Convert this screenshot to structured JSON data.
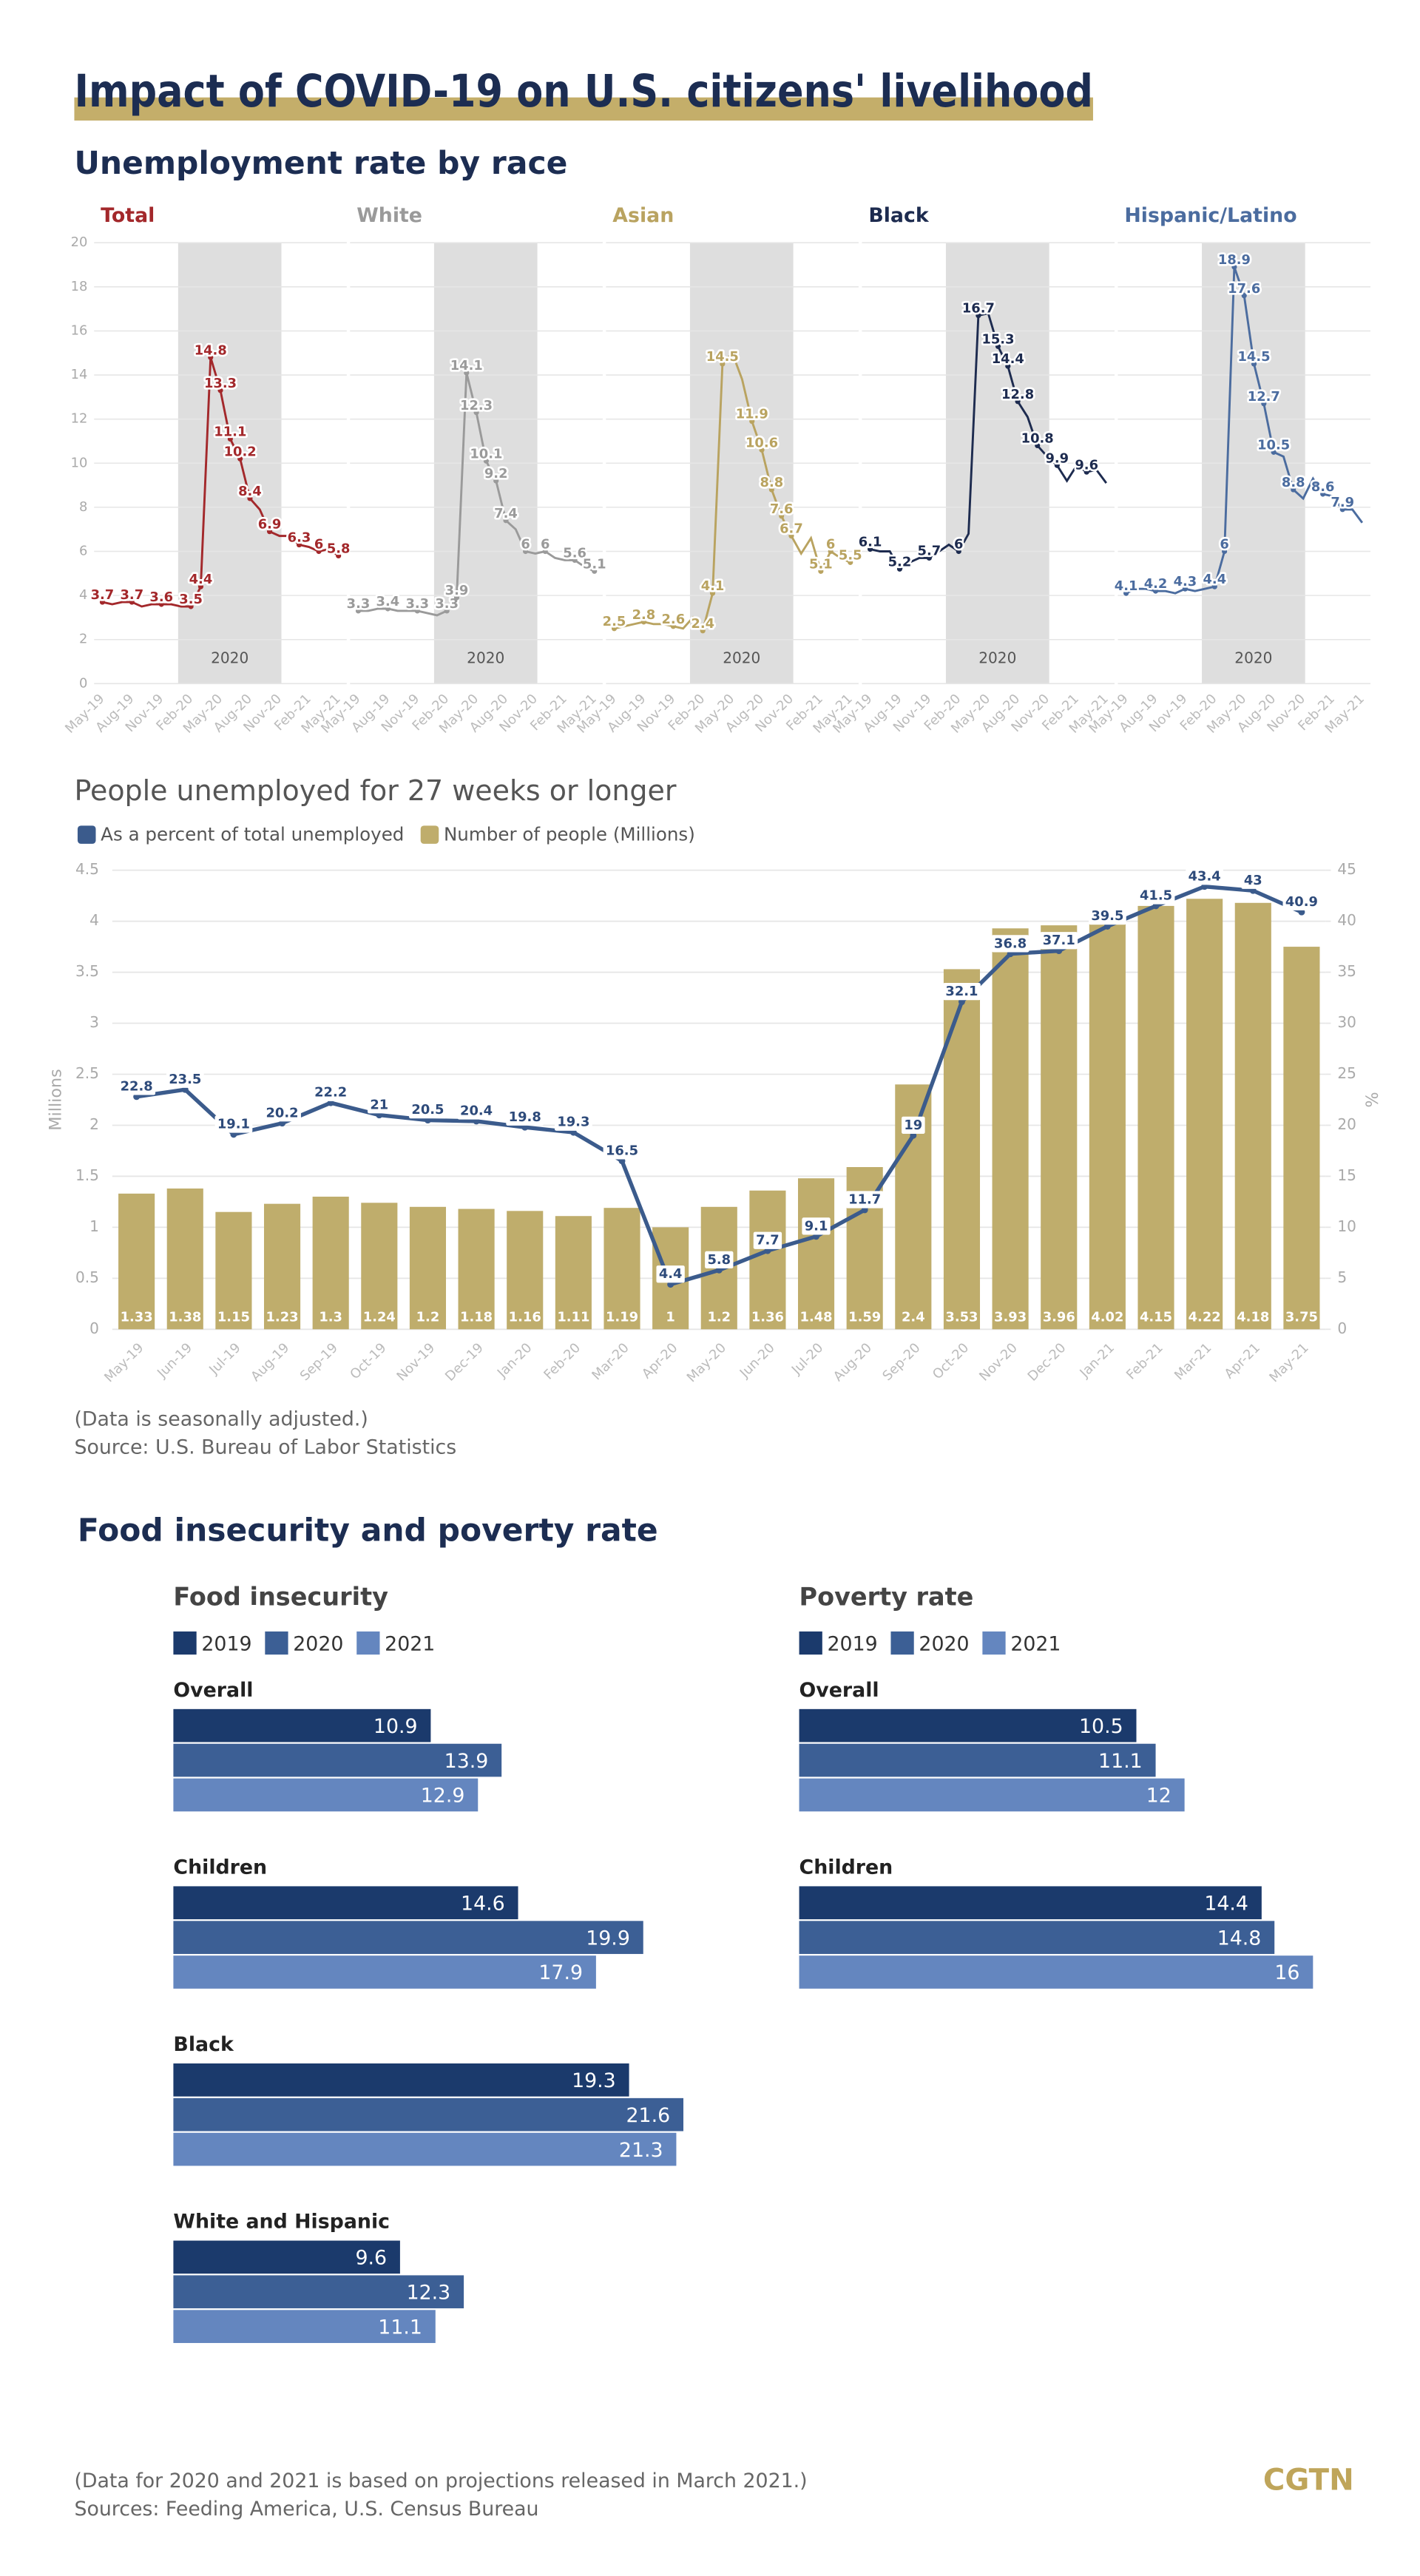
{
  "header": {
    "title": "Impact of COVID-19 on U.S. citizens' livelihood",
    "section_1": "Unemployment rate by race",
    "section_2": "Food insecurity and poverty rate"
  },
  "chart_data": [
    {
      "type": "line",
      "categories": [
        "May-19",
        null,
        null,
        "Aug-19",
        null,
        null,
        "Nov-19",
        null,
        null,
        "Feb-20",
        null,
        null,
        "May-20",
        null,
        null,
        "Aug-20",
        null,
        null,
        "Nov-20",
        null,
        null,
        "Feb-21",
        null,
        null,
        "May-21"
      ],
      "ylim": [
        0,
        20
      ],
      "yticks": [
        0,
        2,
        4,
        6,
        8,
        10,
        12,
        14,
        16,
        18,
        20
      ],
      "grid": true,
      "annotation": "2020",
      "series": [
        {
          "name": "Total",
          "color": "#a3282b",
          "values": [
            3.7,
            3.6,
            3.7,
            3.7,
            3.5,
            3.6,
            3.6,
            3.6,
            3.5,
            3.5,
            4.4,
            14.8,
            13.3,
            11.1,
            10.2,
            8.4,
            7.9,
            6.9,
            6.7,
            6.7,
            6.3,
            6.2,
            6,
            6.1,
            5.8
          ],
          "value_labels": [
            "3.7",
            null,
            null,
            "3.7",
            null,
            null,
            "3.6",
            null,
            null,
            "3.5",
            "4.4",
            "14.8",
            "13.3",
            "11.1",
            "10.2",
            "8.4",
            null,
            "6.9",
            null,
            null,
            "6.3",
            null,
            "6",
            null,
            "5.8"
          ]
        },
        {
          "name": "White",
          "color": "#9a9a9a",
          "values": [
            3.3,
            3.3,
            3.4,
            3.4,
            3.3,
            3.3,
            3.3,
            3.2,
            3.1,
            3.3,
            3.9,
            14.1,
            12.3,
            10.1,
            9.2,
            7.4,
            7,
            6,
            5.9,
            6,
            5.7,
            5.6,
            5.6,
            5.3,
            5.1
          ],
          "value_labels": [
            "3.3",
            null,
            null,
            "3.4",
            null,
            null,
            "3.3",
            null,
            null,
            "3.3",
            "3.9",
            "14.1",
            "12.3",
            "10.1",
            "9.2",
            "7.4",
            null,
            "6",
            null,
            "6",
            null,
            null,
            "5.6",
            null,
            "5.1"
          ]
        },
        {
          "name": "Asian",
          "color": "#b9a360",
          "values": [
            2.5,
            2.6,
            2.7,
            2.8,
            2.7,
            2.7,
            2.6,
            2.5,
            3,
            2.4,
            4.1,
            14.5,
            15,
            13.8,
            11.9,
            10.6,
            8.8,
            7.6,
            6.7,
            5.9,
            6.6,
            5.1,
            6,
            5.7,
            5.5
          ],
          "value_labels": [
            "2.5",
            null,
            null,
            "2.8",
            null,
            null,
            "2.6",
            null,
            null,
            "2.4",
            "4.1",
            "14.5",
            null,
            null,
            "11.9",
            "10.6",
            "8.8",
            "7.6",
            "6.7",
            null,
            null,
            "5.1",
            "6",
            null,
            "5.5"
          ]
        },
        {
          "name": "Black",
          "color": "#1d2b4f",
          "values": [
            6.1,
            6,
            6,
            5.2,
            5.5,
            5.7,
            5.7,
            6,
            6.3,
            6,
            6.8,
            16.7,
            16.8,
            15.3,
            14.4,
            12.8,
            12.1,
            10.8,
            10.3,
            9.9,
            9.2,
            9.9,
            9.6,
            9.7,
            9.1
          ],
          "value_labels": [
            "6.1",
            null,
            null,
            "5.2",
            null,
            null,
            "5.7",
            null,
            null,
            "6",
            null,
            "16.7",
            null,
            "15.3",
            "14.4",
            "12.8",
            null,
            "10.8",
            null,
            "9.9",
            null,
            null,
            "9.6",
            null,
            null
          ]
        },
        {
          "name": "Hispanic/Latino",
          "color": "#4b6c9f",
          "values": [
            4.1,
            4.3,
            4.3,
            4.2,
            4.2,
            4.1,
            4.3,
            4.2,
            4.3,
            4.4,
            6,
            18.9,
            17.6,
            14.5,
            12.7,
            10.5,
            10.3,
            8.8,
            8.4,
            9.3,
            8.6,
            8.5,
            7.9,
            7.9,
            7.3
          ],
          "value_labels": [
            "4.1",
            null,
            null,
            "4.2",
            null,
            null,
            "4.3",
            null,
            null,
            "4.4",
            "6",
            "18.9",
            "17.6",
            "14.5",
            "12.7",
            "10.5",
            null,
            "8.8",
            null,
            null,
            "8.6",
            null,
            "7.9",
            null,
            null
          ]
        }
      ]
    },
    {
      "type": "combo",
      "title": "People unemployed for 27 weeks or longer",
      "ylabel": "Millions",
      "y2label": "%",
      "categories": [
        "May-19",
        "Jun-19",
        "Jul-19",
        "Aug-19",
        "Sep-19",
        "Oct-19",
        "Nov-19",
        "Dec-19",
        "Jan-20",
        "Feb-20",
        "Mar-20",
        "Apr-20",
        "May-20",
        "Jun-20",
        "Jul-20",
        "Aug-20",
        "Sep-20",
        "Oct-20",
        "Nov-20",
        "Dec-20",
        "Jan-21",
        "Feb-21",
        "Mar-21",
        "Apr-21",
        "May-21"
      ],
      "ylim": [
        0,
        4.5
      ],
      "yticks": [
        0,
        0.5,
        1,
        1.5,
        2,
        2.5,
        3,
        3.5,
        4,
        4.5
      ],
      "y2lim": [
        0,
        45
      ],
      "y2ticks": [
        0,
        5,
        10,
        15,
        20,
        25,
        30,
        35,
        40,
        45
      ],
      "grid": true,
      "series": [
        {
          "name": "As a percent of total unemployed",
          "type": "line",
          "axis": "y2",
          "color": "#3b5b8c",
          "values": [
            22.8,
            23.5,
            19.1,
            20.2,
            22.2,
            21,
            20.5,
            20.4,
            19.8,
            19.3,
            16.5,
            4.4,
            5.8,
            7.7,
            9.1,
            11.7,
            19,
            32.1,
            36.8,
            37.1,
            39.5,
            41.5,
            43.4,
            43,
            40.9
          ]
        },
        {
          "name": "Number of people (Millions)",
          "type": "bar",
          "color": "#bfad6c",
          "values": [
            1.33,
            1.38,
            1.15,
            1.23,
            1.3,
            1.24,
            1.2,
            1.18,
            1.16,
            1.11,
            1.19,
            1,
            1.2,
            1.36,
            1.48,
            1.59,
            2.4,
            3.53,
            3.93,
            3.96,
            4.02,
            4.15,
            4.22,
            4.18,
            3.75
          ]
        }
      ],
      "notes": [
        "(Data is seasonally adjusted.)",
        "Source: U.S. Bureau of Labor Statistics"
      ]
    },
    {
      "type": "hbar",
      "title": "Food insecurity",
      "categories": [
        "Overall",
        "Children",
        "Black",
        "White and Hispanic"
      ],
      "xlim": [
        0,
        30
      ],
      "series": [
        {
          "name": "2019",
          "color": "#1b3a6c",
          "values": [
            10.9,
            14.6,
            19.3,
            9.6
          ]
        },
        {
          "name": "2020",
          "color": "#3c5f95",
          "values": [
            13.9,
            19.9,
            21.6,
            12.3
          ]
        },
        {
          "name": "2021",
          "color": "#6486bf",
          "values": [
            12.9,
            17.9,
            21.3,
            11.1
          ]
        }
      ]
    },
    {
      "type": "hbar",
      "title": "Poverty rate",
      "categories": [
        "Overall",
        "Children"
      ],
      "xlim": [
        0,
        20
      ],
      "series": [
        {
          "name": "2019",
          "color": "#1b3a6c",
          "values": [
            10.5,
            14.4
          ]
        },
        {
          "name": "2020",
          "color": "#3c5f95",
          "values": [
            11.1,
            14.8
          ]
        },
        {
          "name": "2021",
          "color": "#6486bf",
          "values": [
            12,
            16
          ]
        }
      ]
    }
  ],
  "footer": {
    "note": "(Data for 2020 and 2021 is based on projections released in March 2021.)",
    "source": "Sources: Feeding America, U.S. Census Bureau",
    "logo": "CGTN"
  }
}
